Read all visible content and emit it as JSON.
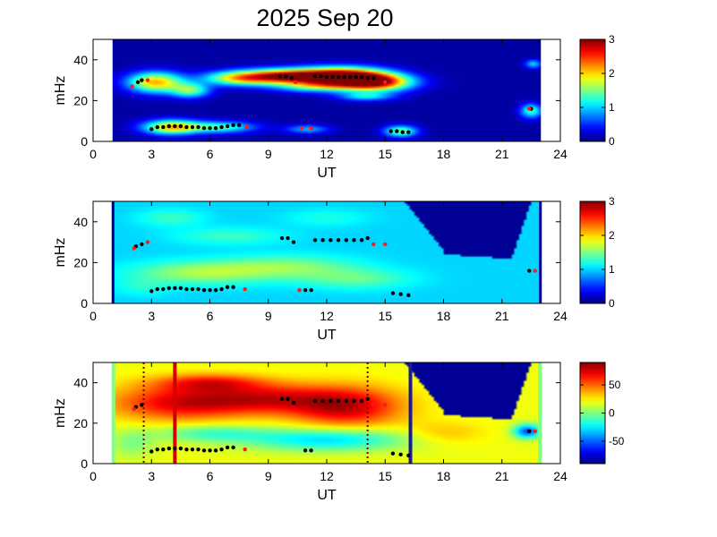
{
  "title": "2025 Sep 20",
  "chart_data": [
    {
      "type": "heatmap",
      "panel": "top",
      "xlabel": "UT",
      "ylabel": "mHz",
      "xlim": [
        0,
        24
      ],
      "ylim": [
        0,
        50
      ],
      "xticks": [
        "0",
        "3",
        "6",
        "9",
        "12",
        "15",
        "18",
        "21",
        "24"
      ],
      "yticks": [
        "0",
        "20",
        "40"
      ],
      "data_range": [
        1,
        23
      ],
      "colorbar": {
        "range": [
          0,
          3
        ],
        "ticks": [
          "0",
          "1",
          "2",
          "3"
        ]
      },
      "background_value": 0.1,
      "blobs": [
        {
          "x": 3.2,
          "y": 29,
          "v": 2.1,
          "sx": 1.0,
          "sy": 3.5
        },
        {
          "x": 5.0,
          "y": 25,
          "v": 1.4,
          "sx": 0.7,
          "sy": 2.5
        },
        {
          "x": 7.5,
          "y": 31,
          "v": 1.8,
          "sx": 1.3,
          "sy": 2.5
        },
        {
          "x": 10.0,
          "y": 32,
          "v": 2.6,
          "sx": 1.5,
          "sy": 2.5
        },
        {
          "x": 12.8,
          "y": 32,
          "v": 3.0,
          "sx": 1.5,
          "sy": 3.0
        },
        {
          "x": 14.5,
          "y": 29,
          "v": 2.7,
          "sx": 1.3,
          "sy": 3.0
        },
        {
          "x": 11.5,
          "y": 27,
          "v": 1.3,
          "sx": 1.5,
          "sy": 2.0
        },
        {
          "x": 4.0,
          "y": 7,
          "v": 2.0,
          "sx": 1.0,
          "sy": 2.5
        },
        {
          "x": 6.5,
          "y": 7,
          "v": 1.3,
          "sx": 1.3,
          "sy": 2.0
        },
        {
          "x": 11.0,
          "y": 6,
          "v": 0.9,
          "sx": 0.8,
          "sy": 1.5
        },
        {
          "x": 15.8,
          "y": 5,
          "v": 1.5,
          "sx": 0.6,
          "sy": 2.0
        },
        {
          "x": 22.5,
          "y": 15,
          "v": 1.3,
          "sx": 0.4,
          "sy": 2.5
        },
        {
          "x": 22.6,
          "y": 38,
          "v": 1.0,
          "sx": 0.3,
          "sy": 1.5
        },
        {
          "x": 14.0,
          "y": 22,
          "v": 1.0,
          "sx": 1.0,
          "sy": 1.5
        }
      ],
      "black_points": [
        [
          2.3,
          29
        ],
        [
          2.5,
          30
        ],
        [
          3.0,
          6
        ],
        [
          3.3,
          7
        ],
        [
          3.6,
          7
        ],
        [
          3.9,
          7.5
        ],
        [
          4.2,
          7.5
        ],
        [
          4.5,
          7.5
        ],
        [
          4.8,
          7
        ],
        [
          5.1,
          7
        ],
        [
          5.4,
          7
        ],
        [
          5.7,
          6.5
        ],
        [
          6.0,
          6.5
        ],
        [
          6.3,
          6.5
        ],
        [
          6.6,
          7
        ],
        [
          6.9,
          7.5
        ],
        [
          7.2,
          8
        ],
        [
          7.5,
          8
        ],
        [
          9.6,
          32
        ],
        [
          9.9,
          32
        ],
        [
          10.2,
          31
        ],
        [
          11.4,
          32
        ],
        [
          11.7,
          32
        ],
        [
          12.0,
          31.5
        ],
        [
          12.3,
          31.5
        ],
        [
          12.6,
          31.5
        ],
        [
          12.9,
          31.5
        ],
        [
          13.2,
          31.5
        ],
        [
          13.5,
          31.5
        ],
        [
          13.8,
          31.5
        ],
        [
          14.1,
          31
        ],
        [
          14.4,
          31
        ],
        [
          15.3,
          5
        ],
        [
          15.6,
          5
        ],
        [
          15.9,
          4.5
        ],
        [
          16.2,
          4.5
        ],
        [
          22.5,
          16
        ]
      ],
      "red_points": [
        [
          2.0,
          27
        ],
        [
          2.8,
          30
        ],
        [
          7.9,
          7
        ],
        [
          10.7,
          6.5
        ],
        [
          11.2,
          6.5
        ],
        [
          10.4,
          29
        ],
        [
          15.0,
          29
        ],
        [
          22.4,
          16
        ]
      ]
    },
    {
      "type": "heatmap",
      "panel": "middle",
      "xlabel": "UT",
      "ylabel": "mHz",
      "xlim": [
        0,
        24
      ],
      "ylim": [
        0,
        50
      ],
      "xticks": [
        "0",
        "3",
        "6",
        "9",
        "12",
        "15",
        "18",
        "21",
        "24"
      ],
      "yticks": [
        "0",
        "20",
        "40"
      ],
      "data_range": [
        1,
        23
      ],
      "colorbar": {
        "range": [
          0,
          3
        ],
        "ticks": [
          "0",
          "1",
          "2",
          "3"
        ]
      },
      "background_value": 1.0,
      "blobs": [
        {
          "x": 5.5,
          "y": 15,
          "v": 1.6,
          "sx": 2.5,
          "sy": 4.0
        },
        {
          "x": 10.0,
          "y": 18,
          "v": 1.5,
          "sx": 2.5,
          "sy": 4.0
        },
        {
          "x": 13.5,
          "y": 12,
          "v": 1.4,
          "sx": 2.0,
          "sy": 3.5
        },
        {
          "x": 7.0,
          "y": 33,
          "v": 1.3,
          "sx": 2.0,
          "sy": 3.0
        },
        {
          "x": 4.0,
          "y": 42,
          "v": 1.3,
          "sx": 1.2,
          "sy": 3.0
        },
        {
          "x": 12.0,
          "y": 42,
          "v": 1.2,
          "sx": 1.5,
          "sy": 3.0
        },
        {
          "x": 2.5,
          "y": 8,
          "v": 1.2,
          "sx": 1.0,
          "sy": 3.0
        }
      ],
      "mask": "upper-right",
      "black_points": [
        [
          2.2,
          28
        ],
        [
          2.5,
          29
        ],
        [
          3.0,
          6
        ],
        [
          3.3,
          7
        ],
        [
          3.6,
          7
        ],
        [
          3.9,
          7.5
        ],
        [
          4.2,
          7.5
        ],
        [
          4.5,
          7.5
        ],
        [
          4.8,
          7
        ],
        [
          5.1,
          7
        ],
        [
          5.4,
          7
        ],
        [
          5.7,
          6.5
        ],
        [
          6.0,
          6.5
        ],
        [
          6.3,
          6.5
        ],
        [
          6.6,
          7
        ],
        [
          6.9,
          8
        ],
        [
          7.2,
          8
        ],
        [
          9.7,
          32
        ],
        [
          10.0,
          32
        ],
        [
          10.3,
          30
        ],
        [
          11.4,
          31
        ],
        [
          11.8,
          31
        ],
        [
          12.2,
          31
        ],
        [
          12.6,
          31
        ],
        [
          13.0,
          31
        ],
        [
          13.4,
          31
        ],
        [
          13.8,
          31
        ],
        [
          14.1,
          32
        ],
        [
          15.4,
          5
        ],
        [
          15.8,
          4.5
        ],
        [
          16.2,
          4
        ],
        [
          22.4,
          16
        ],
        [
          10.9,
          6.5
        ],
        [
          11.2,
          6.5
        ]
      ],
      "red_points": [
        [
          2.1,
          27
        ],
        [
          2.8,
          30
        ],
        [
          7.8,
          7
        ],
        [
          10.6,
          6.5
        ],
        [
          14.4,
          29
        ],
        [
          15.0,
          29
        ],
        [
          22.7,
          16
        ]
      ]
    },
    {
      "type": "heatmap",
      "panel": "bottom",
      "xlabel": "UT",
      "ylabel": "mHz",
      "xlim": [
        0,
        24
      ],
      "ylim": [
        0,
        50
      ],
      "xticks": [
        "0",
        "3",
        "6",
        "9",
        "12",
        "15",
        "18",
        "21",
        "24"
      ],
      "yticks": [
        "0",
        "20",
        "40"
      ],
      "data_range": [
        1,
        23
      ],
      "colorbar": {
        "range": [
          -90,
          90
        ],
        "ticks": [
          "-50",
          "0",
          "50"
        ]
      },
      "background_value": 20,
      "blobs": [
        {
          "x": 4.5,
          "y": 30,
          "v": 70,
          "sx": 2.5,
          "sy": 6.0
        },
        {
          "x": 9.0,
          "y": 32,
          "v": 65,
          "sx": 2.5,
          "sy": 5.0
        },
        {
          "x": 13.0,
          "y": 28,
          "v": 75,
          "sx": 2.0,
          "sy": 7.0
        },
        {
          "x": 6.0,
          "y": 40,
          "v": 60,
          "sx": 2.0,
          "sy": 3.0
        },
        {
          "x": 12.0,
          "y": 12,
          "v": -30,
          "sx": 3.0,
          "sy": 4.0
        },
        {
          "x": 6.0,
          "y": 15,
          "v": -10,
          "sx": 2.0,
          "sy": 3.0
        },
        {
          "x": 18.0,
          "y": 15,
          "v": 35,
          "sx": 1.5,
          "sy": 4.0
        },
        {
          "x": 22.3,
          "y": 16,
          "v": -55,
          "sx": 0.5,
          "sy": 2.5
        },
        {
          "x": 2.0,
          "y": 10,
          "v": 0,
          "sx": 0.8,
          "sy": 5.0
        }
      ],
      "mask": "upper-right",
      "vlines": [
        {
          "x": 2.6,
          "color": "#7a0000",
          "style": "dotted"
        },
        {
          "x": 4.2,
          "color": "#d40000",
          "style": "solid"
        },
        {
          "x": 14.1,
          "color": "#7a0000",
          "style": "dotted"
        },
        {
          "x": 16.3,
          "color": "#1a1aa0",
          "style": "solid"
        }
      ],
      "black_points": [
        [
          2.2,
          28
        ],
        [
          2.5,
          29
        ],
        [
          3.0,
          6
        ],
        [
          3.3,
          7
        ],
        [
          3.6,
          7
        ],
        [
          3.9,
          7.5
        ],
        [
          4.2,
          7.5
        ],
        [
          4.5,
          7.5
        ],
        [
          4.8,
          7
        ],
        [
          5.1,
          7
        ],
        [
          5.4,
          7
        ],
        [
          5.7,
          6.5
        ],
        [
          6.0,
          6.5
        ],
        [
          6.3,
          6.5
        ],
        [
          6.6,
          7
        ],
        [
          6.9,
          8
        ],
        [
          7.2,
          8
        ],
        [
          9.7,
          32
        ],
        [
          10.0,
          32
        ],
        [
          10.3,
          30
        ],
        [
          11.4,
          31
        ],
        [
          11.8,
          31
        ],
        [
          12.2,
          31
        ],
        [
          12.6,
          31
        ],
        [
          13.0,
          31
        ],
        [
          13.4,
          31
        ],
        [
          13.8,
          31
        ],
        [
          14.1,
          32
        ],
        [
          15.4,
          5
        ],
        [
          15.8,
          4.5
        ],
        [
          16.2,
          4
        ],
        [
          22.4,
          16
        ],
        [
          10.9,
          6.5
        ],
        [
          11.2,
          6.5
        ]
      ],
      "red_points": [
        [
          2.1,
          27
        ],
        [
          2.8,
          30
        ],
        [
          7.8,
          7
        ],
        [
          14.4,
          29
        ],
        [
          15.0,
          29
        ],
        [
          22.7,
          16
        ]
      ]
    }
  ]
}
